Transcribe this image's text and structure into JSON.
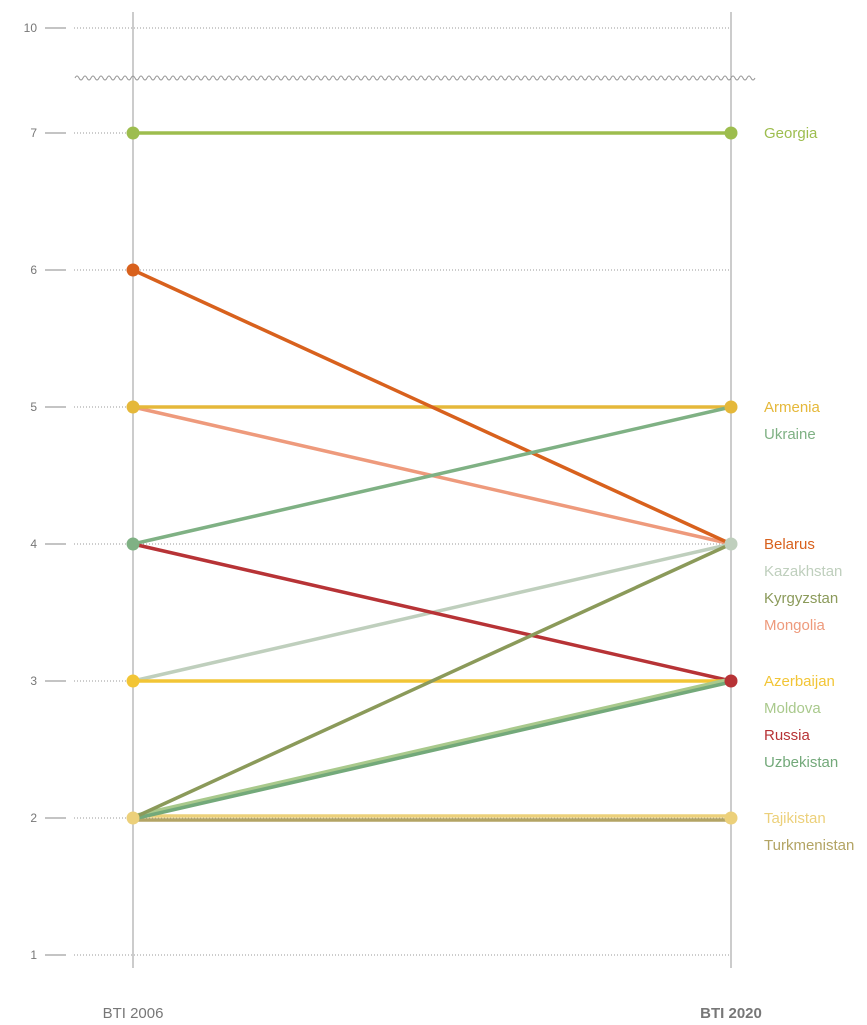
{
  "chart_data": {
    "type": "line",
    "title": "",
    "x": [
      "BTI 2006",
      "BTI 2020"
    ],
    "y_ticks": [
      1,
      2,
      3,
      4,
      5,
      6,
      7,
      10
    ],
    "ylim": [
      1,
      10
    ],
    "axis_break": "between 7 and 10",
    "grid": true,
    "series": [
      {
        "name": "Georgia",
        "values": [
          7,
          7
        ],
        "color": "#9dbd4e"
      },
      {
        "name": "Armenia",
        "values": [
          5,
          5
        ],
        "color": "#e5b83a"
      },
      {
        "name": "Ukraine",
        "values": [
          4,
          5
        ],
        "color": "#7fb184"
      },
      {
        "name": "Belarus",
        "values": [
          6,
          4
        ],
        "color": "#d8611d"
      },
      {
        "name": "Kazakhstan",
        "values": [
          3,
          4
        ],
        "color": "#bfcfbd"
      },
      {
        "name": "Kyrgyzstan",
        "values": [
          2,
          4
        ],
        "color": "#8b9a5a"
      },
      {
        "name": "Mongolia",
        "values": [
          5,
          4
        ],
        "color": "#ee9a7c"
      },
      {
        "name": "Azerbaijan",
        "values": [
          3,
          3
        ],
        "color": "#f2c536"
      },
      {
        "name": "Moldova",
        "values": [
          2,
          3
        ],
        "color": "#a9c98c"
      },
      {
        "name": "Russia",
        "values": [
          4,
          3
        ],
        "color": "#b73336"
      },
      {
        "name": "Uzbekistan",
        "values": [
          2,
          3
        ],
        "color": "#73a97a"
      },
      {
        "name": "Tajikistan",
        "values": [
          2,
          2
        ],
        "color": "#ecd07a"
      },
      {
        "name": "Turkmenistan",
        "values": [
          2,
          2
        ],
        "color": "#b3a464"
      }
    ]
  }
}
